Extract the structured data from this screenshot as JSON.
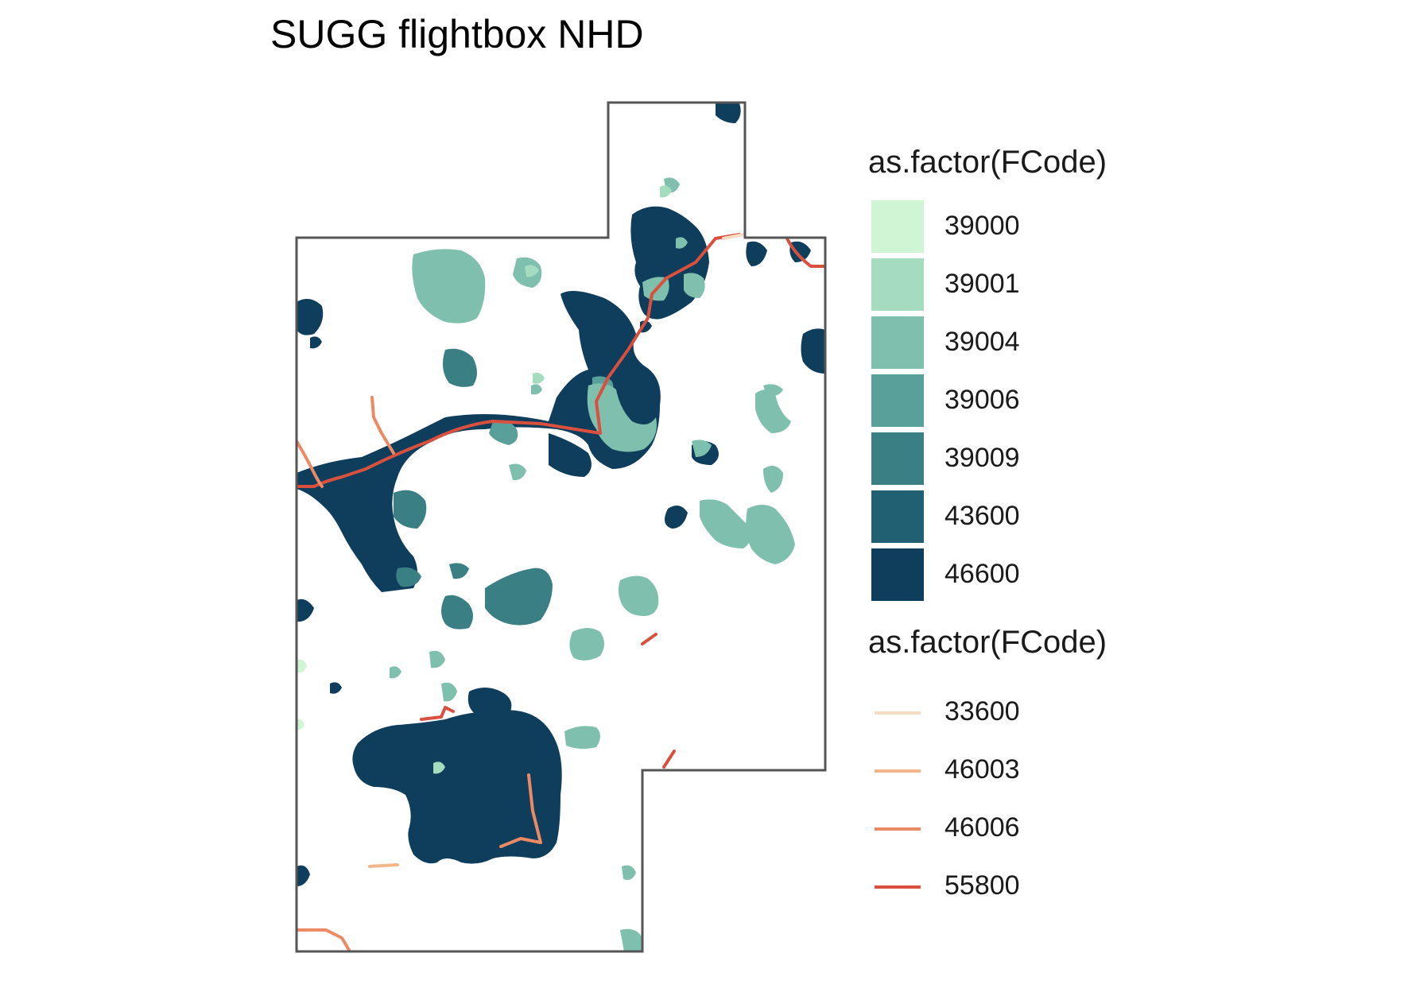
{
  "title": "SUGG flightbox NHD",
  "legend_fill": {
    "title": "as.factor(FCode)",
    "items": [
      {
        "label": "39000",
        "color": "#d0f5d5"
      },
      {
        "label": "39001",
        "color": "#a5dcc0"
      },
      {
        "label": "39004",
        "color": "#7fbfad"
      },
      {
        "label": "39006",
        "color": "#5aa09a"
      },
      {
        "label": "39009",
        "color": "#3a7f83"
      },
      {
        "label": "43600",
        "color": "#215f72"
      },
      {
        "label": "46600",
        "color": "#0f3d5c"
      }
    ]
  },
  "legend_line": {
    "title": "as.factor(FCode)",
    "items": [
      {
        "label": "33600",
        "color": "#f6dcc2"
      },
      {
        "label": "46003",
        "color": "#f2b58c"
      },
      {
        "label": "46006",
        "color": "#ec8a66"
      },
      {
        "label": "55800",
        "color": "#d9503f"
      }
    ]
  }
}
